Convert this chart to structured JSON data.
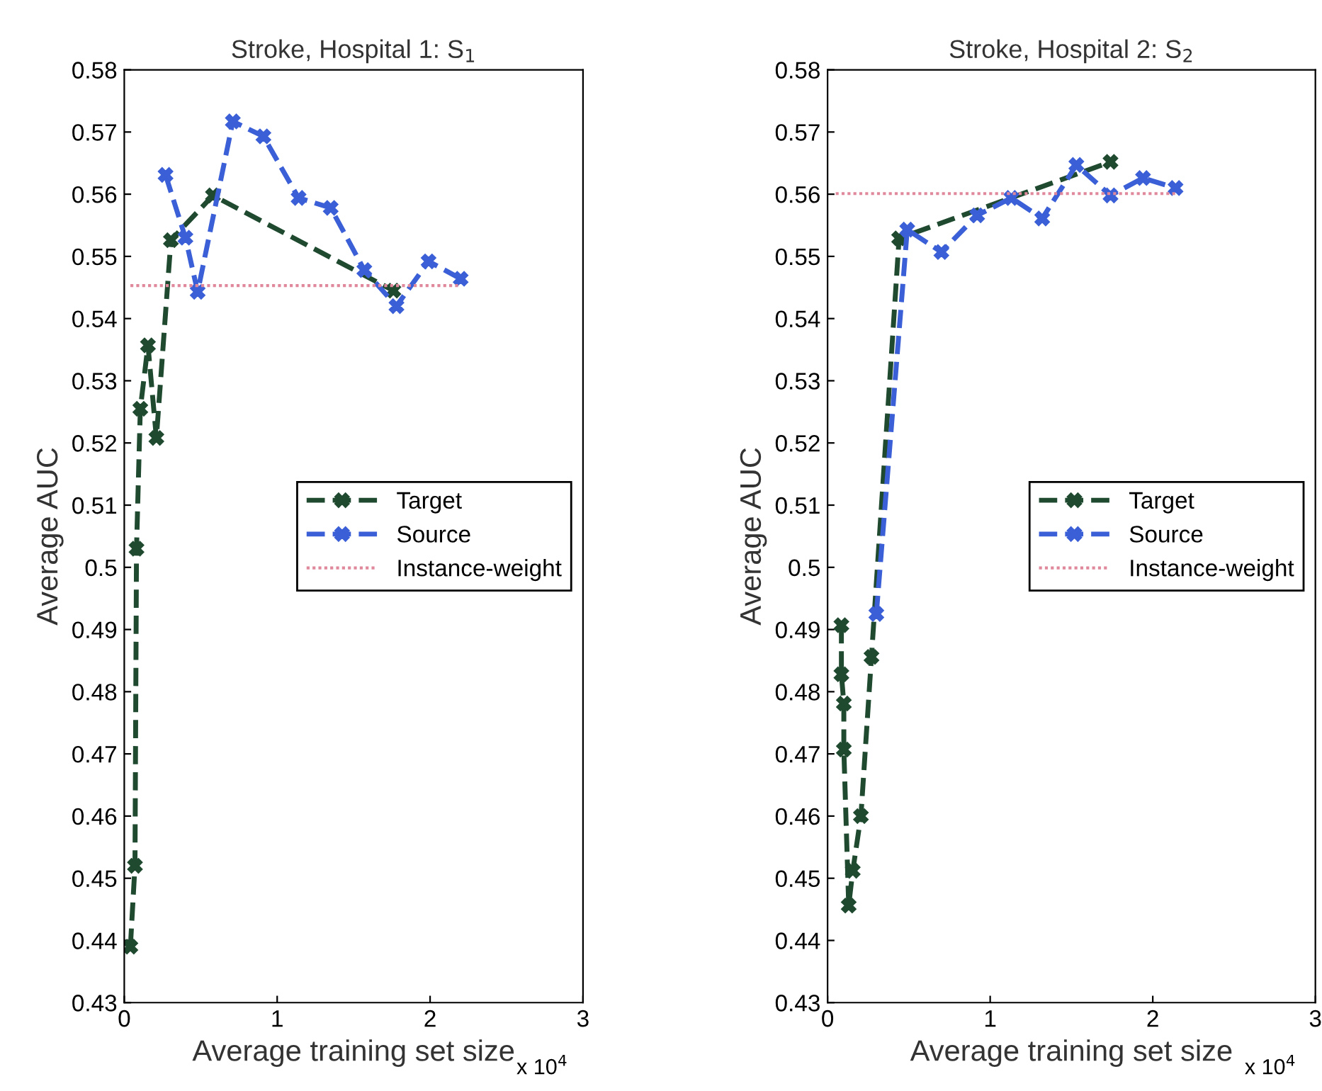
{
  "chart_data": [
    {
      "type": "line",
      "title": "Stroke, Hospital 1: S$_{1}$",
      "xlabel": "Average training set size",
      "ylabel": "Average AUC",
      "annotations": [
        "x 10$^{4}$"
      ],
      "xlim": [
        0,
        3
      ],
      "xticks": [
        0,
        1,
        2,
        3
      ],
      "ylim": [
        0.43,
        0.58
      ],
      "yticks": [
        0.43,
        0.44,
        0.45,
        0.46,
        0.47,
        0.48,
        0.49,
        0.5,
        0.51,
        0.52,
        0.53,
        0.54,
        0.55,
        0.56,
        0.57,
        0.58
      ],
      "grid": false,
      "legend": "center right",
      "series": [
        {
          "name": "Target",
          "color": "#1f4a30",
          "marker": "cross",
          "line_style": "dashed",
          "x": [
            0.04,
            0.07,
            0.08,
            0.105,
            0.155,
            0.21,
            0.305,
            0.58,
            1.76
          ],
          "values": [
            0.439,
            0.452,
            0.503,
            0.5255,
            0.5357,
            0.5208,
            0.5526,
            0.5598,
            0.5445
          ]
        },
        {
          "name": "Source",
          "color": "#3b5fd6",
          "marker": "cross",
          "line_style": "dashed",
          "x": [
            0.27,
            0.4,
            0.48,
            0.71,
            0.91,
            1.14,
            1.35,
            1.57,
            1.78,
            1.99,
            2.2
          ],
          "values": [
            0.5631,
            0.553,
            0.5443,
            0.5717,
            0.5693,
            0.5594,
            0.5578,
            0.5478,
            0.542,
            0.5492,
            0.5464
          ]
        },
        {
          "name": "Instance-weight",
          "color": "#e0899c",
          "marker": "none",
          "line_style": "dotted",
          "x": [
            0.04,
            2.2
          ],
          "values": [
            0.5453,
            0.5453
          ]
        }
      ]
    },
    {
      "type": "line",
      "title": "Stroke, Hospital 2: S$_{2}$",
      "xlabel": "Average training set size",
      "ylabel": "Average AUC",
      "annotations": [
        "x 10$^{4}$"
      ],
      "xlim": [
        0,
        3
      ],
      "xticks": [
        0,
        1,
        2,
        3
      ],
      "ylim": [
        0.43,
        0.58
      ],
      "yticks": [
        0.43,
        0.44,
        0.45,
        0.46,
        0.47,
        0.48,
        0.49,
        0.5,
        0.51,
        0.52,
        0.53,
        0.54,
        0.55,
        0.56,
        0.57,
        0.58
      ],
      "grid": false,
      "legend": "center right",
      "series": [
        {
          "name": "Target",
          "color": "#1f4a30",
          "marker": "cross",
          "line_style": "dashed",
          "x": [
            0.085,
            0.085,
            0.1,
            0.1,
            0.13,
            0.155,
            0.205,
            0.27,
            0.44,
            1.74
          ],
          "values": [
            0.4907,
            0.4828,
            0.4781,
            0.4707,
            0.4456,
            0.4512,
            0.46,
            0.4856,
            0.5529,
            0.5652
          ]
        },
        {
          "name": "Source",
          "color": "#3b5fd6",
          "marker": "cross",
          "line_style": "dashed",
          "x": [
            0.3,
            0.49,
            0.7,
            0.92,
            1.13,
            1.32,
            1.53,
            1.74,
            1.94,
            2.14
          ],
          "values": [
            0.4925,
            0.5543,
            0.5507,
            0.5566,
            0.5594,
            0.5561,
            0.5647,
            0.5598,
            0.5626,
            0.561
          ]
        },
        {
          "name": "Instance-weight",
          "color": "#e0899c",
          "marker": "none",
          "line_style": "dotted",
          "x": [
            0.05,
            2.15
          ],
          "values": [
            0.5601,
            0.5601
          ]
        }
      ]
    }
  ]
}
